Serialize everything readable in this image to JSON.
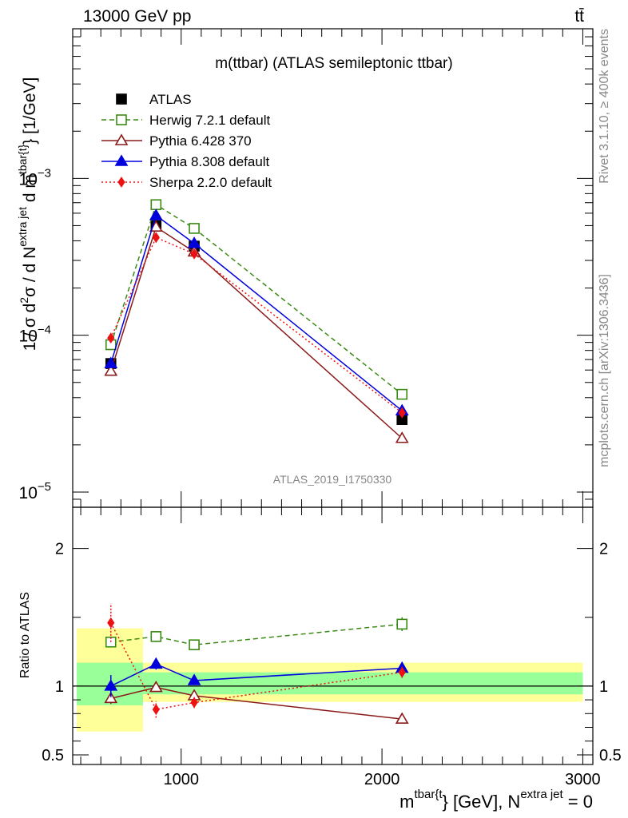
{
  "header": {
    "energy_label": "13000 GeV pp",
    "process_label": "tt̄"
  },
  "side_labels": {
    "rivet": "Rivet 3.1.10, ≥ 400k events",
    "mcplots": "mcplots.cern.ch [arXiv:1306.3436]"
  },
  "chart_data": [
    {
      "type": "line",
      "title": "m(ttbar) (ATLAS semileptonic ttbar)",
      "watermark": "ATLAS_2019_I1750330",
      "ylabel": "1 / σ d²σ / d N^{extra jet} d m^{tbar{t}} [1/GeV]",
      "ylabel_parts": {
        "a": "1 / σ d",
        "b": "2",
        "c": "σ / d N",
        "d": "extra jet",
        "e": " d m",
        "f": "tbar{t}",
        "g": "} [1/GeV]"
      },
      "yscale": "log",
      "ylim": [
        8e-06,
        0.009
      ],
      "xlim": [
        460,
        3050
      ],
      "y_tick_labels": [
        {
          "base": "10",
          "exp": "−5",
          "value": 1e-05
        },
        {
          "base": "10",
          "exp": "−4",
          "value": 0.0001
        },
        {
          "base": "10",
          "exp": "−3",
          "value": 0.001
        }
      ],
      "legend_placement": "top-left",
      "series": [
        {
          "name": "ATLAS",
          "color": "#000000",
          "marker": "square-filled",
          "line": "none",
          "x": [
            650,
            875,
            1065,
            2100
          ],
          "y": [
            6.6e-05,
            0.0005,
            0.00037,
            2.9e-05
          ]
        },
        {
          "name": "Herwig 7.2.1 default",
          "color": "#3a8a14",
          "marker": "square-open",
          "line": "dashed",
          "x": [
            650,
            875,
            1065,
            2100
          ],
          "y": [
            8.7e-05,
            0.00068,
            0.00048,
            4.2e-05
          ]
        },
        {
          "name": "Pythia 6.428 370",
          "color": "#8b1a1a",
          "marker": "triangle-open",
          "line": "solid",
          "x": [
            650,
            875,
            1065,
            2100
          ],
          "y": [
            5.9e-05,
            0.00049,
            0.00034,
            2.2e-05
          ]
        },
        {
          "name": "Pythia 8.308 default",
          "color": "#0000dd",
          "marker": "triangle-filled",
          "line": "solid",
          "x": [
            650,
            875,
            1065,
            2100
          ],
          "y": [
            6.6e-05,
            0.00058,
            0.000385,
            3.3e-05
          ]
        },
        {
          "name": "Sherpa 2.2.0 default",
          "color": "#ee1111",
          "marker": "diamond-filled",
          "line": "dotted",
          "x": [
            650,
            875,
            1065,
            2100
          ],
          "y": [
            9.6e-05,
            0.00042,
            0.00033,
            3.2e-05
          ]
        }
      ]
    },
    {
      "type": "line",
      "ylabel": "Ratio to ATLAS",
      "xlabel": "m^{tbar{t}} [GeV], N^{extra jet} = 0",
      "xlabel_parts": {
        "a": "m",
        "b": "tbar{t",
        "c": "} [GeV], N",
        "d": "extra jet",
        "e": " = 0"
      },
      "ylim": [
        0.43,
        2.3
      ],
      "xlim": [
        460,
        3050
      ],
      "x_tick_labels": [
        {
          "label": "1000",
          "value": 1000
        },
        {
          "label": "2000",
          "value": 2000
        },
        {
          "label": "3000",
          "value": 3000
        }
      ],
      "y_tick_labels": [
        {
          "label": "0.5",
          "value": 0.5
        },
        {
          "label": "1",
          "value": 1
        },
        {
          "label": "2",
          "value": 2
        }
      ],
      "uncertainty_bands": [
        {
          "x": [
            480,
            810
          ],
          "stat_syst": [
            0.67,
            1.42
          ],
          "stat": [
            0.86,
            1.17
          ]
        },
        {
          "x": [
            810,
            3000
          ],
          "stat_syst": [
            0.885,
            1.17
          ],
          "stat": [
            0.94,
            1.1
          ]
        }
      ],
      "series": [
        {
          "name": "Herwig 7.2.1 default",
          "color": "#3a8a14",
          "x": [
            650,
            875,
            1065,
            2100
          ],
          "y": [
            1.32,
            1.36,
            1.3,
            1.45
          ],
          "err": [
            0.04,
            0.04,
            0.03,
            0.05
          ]
        },
        {
          "name": "Pythia 6.428 370",
          "color": "#8b1a1a",
          "x": [
            650,
            875,
            1065,
            2100
          ],
          "y": [
            0.91,
            0.99,
            0.93,
            0.76
          ],
          "err": [
            0.04,
            0.03,
            0.03,
            0.03
          ]
        },
        {
          "name": "Pythia 8.308 default",
          "color": "#0000dd",
          "x": [
            650,
            875,
            1065,
            2100
          ],
          "y": [
            1.0,
            1.16,
            1.04,
            1.13
          ],
          "err": [
            0.08,
            0.04,
            0.03,
            0.04
          ]
        },
        {
          "name": "Sherpa 2.2.0 default",
          "color": "#ee1111",
          "x": [
            650,
            875,
            1065,
            2100
          ],
          "y": [
            1.46,
            0.83,
            0.88,
            1.1
          ],
          "err": [
            0.14,
            0.06,
            0.04,
            0.04
          ]
        }
      ]
    }
  ]
}
